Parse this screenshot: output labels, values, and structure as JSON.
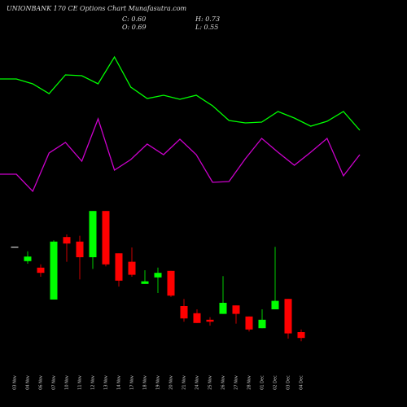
{
  "chart_data": [
    {
      "type": "candlestick",
      "title": "UNIONBANK 170  CE Options Chart Munafasutra.com",
      "header": {
        "close": "C: 0.60",
        "open": "O: 0.69",
        "high": "H: 0.73",
        "low": "L: 0.55"
      },
      "categories": [
        "03 Nov",
        "04 Nov",
        "06 Nov",
        "07 Nov",
        "10 Nov",
        "11 Nov",
        "12 Nov",
        "13 Nov",
        "14 Nov",
        "17 Nov",
        "18 Nov",
        "19 Nov",
        "20 Nov",
        "21 Nov",
        "24 Nov",
        "25 Nov",
        "26 Nov",
        "27 Nov",
        "28 Nov",
        "01 Dec",
        "02 Dec",
        "03 Dec",
        "04 Dec"
      ],
      "open": [
        2.0,
        1.78,
        1.68,
        1.19,
        2.15,
        2.08,
        1.84,
        2.55,
        1.9,
        1.77,
        1.43,
        1.53,
        1.63,
        1.09,
        0.98,
        0.88,
        0.97,
        1.1,
        0.93,
        0.75,
        1.04,
        1.2,
        0.69
      ],
      "high": [
        2.0,
        1.93,
        1.73,
        2.1,
        2.19,
        2.17,
        2.55,
        2.55,
        1.9,
        1.99,
        1.64,
        1.68,
        1.63,
        1.2,
        1.04,
        0.92,
        1.55,
        1.1,
        0.93,
        1.04,
        2.0,
        1.2,
        0.73
      ],
      "low": [
        2.0,
        1.74,
        1.54,
        1.19,
        1.77,
        1.5,
        1.66,
        1.7,
        1.39,
        1.54,
        1.43,
        1.29,
        1.23,
        0.85,
        0.83,
        0.79,
        0.97,
        0.82,
        0.7,
        0.75,
        1.04,
        0.59,
        0.55
      ],
      "close": [
        2.0,
        1.85,
        1.6,
        2.08,
        2.05,
        1.84,
        2.55,
        1.73,
        1.48,
        1.57,
        1.47,
        1.6,
        1.25,
        0.9,
        0.83,
        0.85,
        1.14,
        0.97,
        0.73,
        0.88,
        1.17,
        0.67,
        0.6
      ],
      "up_color": "#00ff00",
      "down_color": "#ff0000",
      "flat_color": "#ffffff",
      "ylim": [
        0.415,
        2.665
      ]
    },
    {
      "type": "line",
      "series": [
        {
          "color": "#00ff00",
          "values": [
            153,
            153,
            147,
            135,
            158,
            157,
            147,
            180,
            143,
            129,
            133,
            128,
            133,
            120,
            102,
            99,
            100,
            113,
            105,
            95,
            101,
            113,
            90
          ]
        },
        {
          "color": "#cc00cc",
          "values": [
            36,
            36,
            15,
            62,
            75,
            52,
            104,
            41,
            54,
            73,
            60,
            79,
            60,
            26,
            27,
            55,
            80,
            63,
            47,
            63,
            80,
            34,
            60
          ]
        }
      ],
      "ylim": [
        0,
        250
      ]
    }
  ]
}
